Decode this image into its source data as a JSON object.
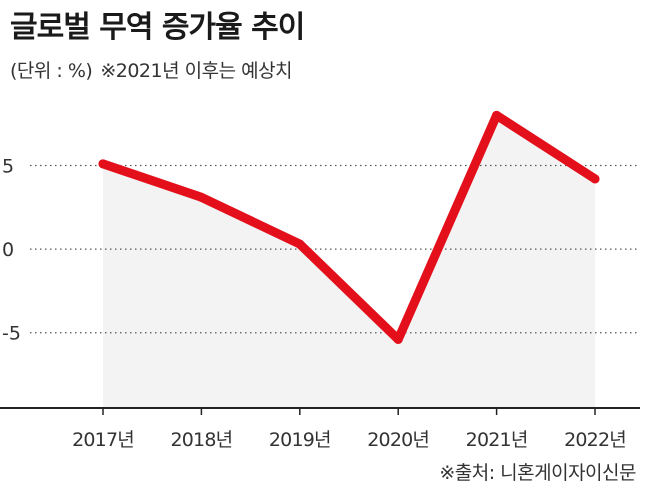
{
  "title": "글로벌 무역 증가율 추이",
  "unit_note": "(단위 : %)",
  "forecast_note": "※2021년 이후는 예상치",
  "source": "※출처: 니혼게이자이신문",
  "colors": {
    "line": "#e3101c",
    "area": "#f3f3f3",
    "axis": "#222222",
    "grid": "#555555"
  },
  "chart_data": {
    "type": "area",
    "title": "글로벌 무역 증가율 추이",
    "xlabel": "",
    "ylabel": "",
    "categories": [
      "2017년",
      "2018년",
      "2019년",
      "2020년",
      "2021년",
      "2022년"
    ],
    "series": [
      {
        "values": [
          5.1,
          3.1,
          0.3,
          -5.4,
          8.0,
          4.2
        ]
      }
    ],
    "yticks": [
      5,
      0,
      -5
    ],
    "ytick_labels": [
      "5",
      "0",
      "-5"
    ],
    "ylim": [
      -9.5,
      8.2
    ],
    "grid": "dotted horizontal lines at y ticks",
    "legend": "none"
  }
}
